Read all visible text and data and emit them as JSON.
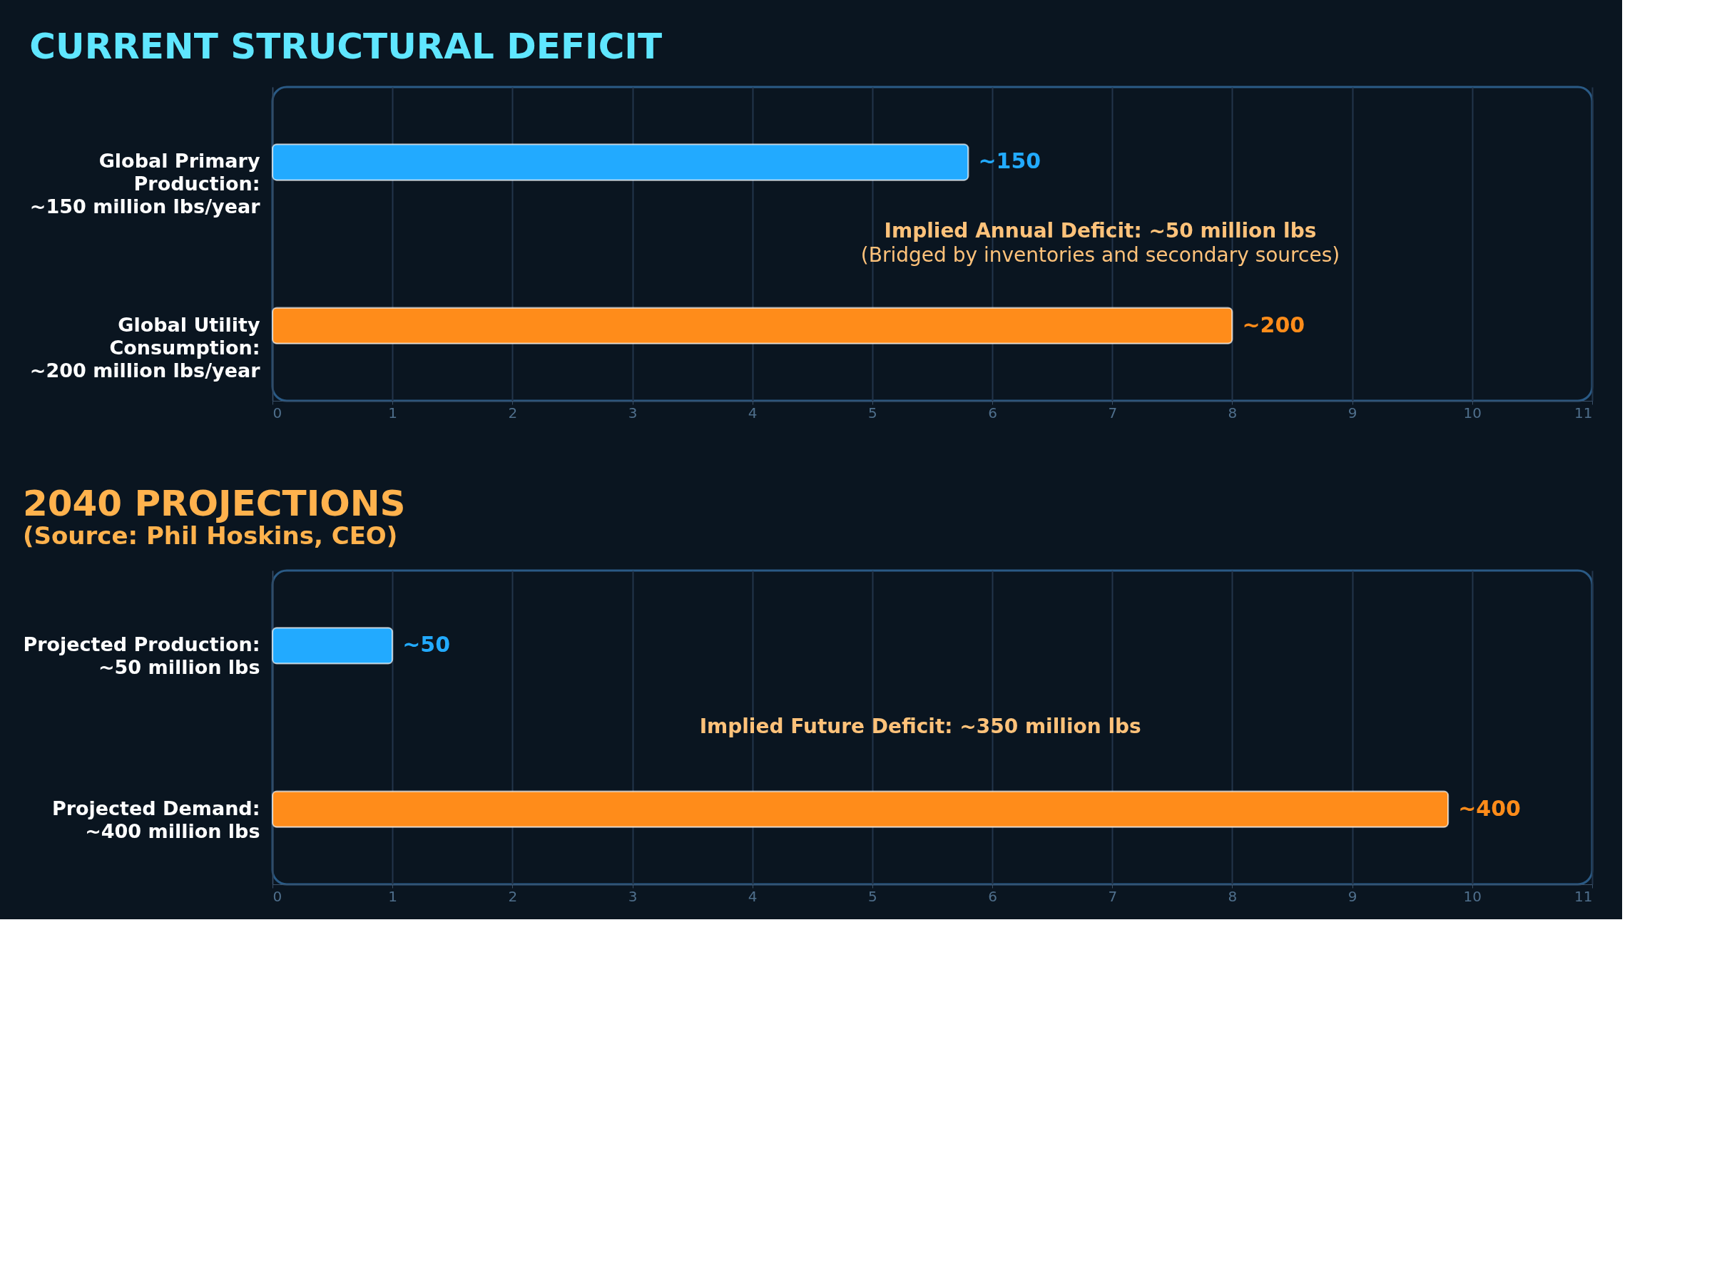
{
  "chart_data": [
    {
      "type": "bar",
      "orientation": "horizontal",
      "title": "CURRENT STRUCTURAL DEFICIT",
      "categories": [
        "Global Primary\nProduction:\n~150 million lbs/year",
        "Global Utility\nConsumption:\n~200 million lbs/year"
      ],
      "values": [
        5.8,
        8.0
      ],
      "colors": [
        "#22aaff",
        "#ff8c1a"
      ],
      "xlim": [
        0,
        11
      ],
      "xticks": [
        0,
        1,
        2,
        3,
        4,
        5,
        6,
        7,
        8,
        9,
        10,
        11
      ],
      "grid": "x",
      "annotations": [
        "~150",
        "~200",
        "Implied Annual Deficit: ~50 million lbs",
        "(Bridged by inventories and secondary sources)"
      ]
    },
    {
      "type": "bar",
      "orientation": "horizontal",
      "title": "2040 PROJECTIONS",
      "subtitle": "(Source: Phil Hoskins, CEO)",
      "categories": [
        "Projected Production:\n~50 million lbs",
        "Projected Demand:\n~400 million lbs"
      ],
      "values": [
        1.0,
        9.8
      ],
      "colors": [
        "#22aaff",
        "#ff8c1a"
      ],
      "xlim": [
        0,
        11
      ],
      "xticks": [
        0,
        1,
        2,
        3,
        4,
        5,
        6,
        7,
        8,
        9,
        10,
        11
      ],
      "grid": "x",
      "annotations": [
        "~50",
        "~400",
        "Implied Future Deficit: ~350 million lbs"
      ]
    }
  ]
}
